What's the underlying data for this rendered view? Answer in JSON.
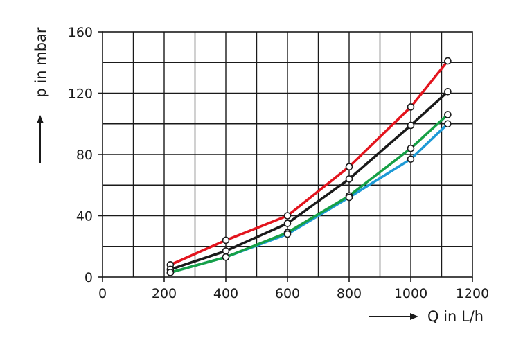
{
  "chart_data": {
    "type": "line",
    "title": "",
    "xlabel": "Q in L/h",
    "ylabel": "p in mbar",
    "xlim": [
      0,
      1200
    ],
    "ylim": [
      0,
      160
    ],
    "x_ticks": [
      0,
      200,
      400,
      600,
      800,
      1000,
      1200
    ],
    "y_ticks": [
      0,
      40,
      80,
      120,
      160
    ],
    "grid": true,
    "legend": "none",
    "series": [
      {
        "color": "#e3141d",
        "x": [
          220,
          400,
          600,
          800,
          1000,
          1120
        ],
        "y": [
          8,
          24,
          40,
          72,
          111,
          141
        ]
      },
      {
        "color": "#1a1a1a",
        "x": [
          220,
          400,
          600,
          800,
          1000,
          1120
        ],
        "y": [
          5,
          17,
          35,
          64,
          99,
          121
        ]
      },
      {
        "color": "#16a046",
        "x": [
          220,
          400,
          600,
          800,
          1000,
          1120
        ],
        "y": [
          3,
          13,
          29,
          53,
          84,
          106
        ]
      },
      {
        "color": "#1e9ad6",
        "x": [
          220,
          400,
          600,
          800,
          1000,
          1120
        ],
        "y": [
          3,
          13,
          28,
          52,
          77,
          100
        ]
      }
    ]
  }
}
